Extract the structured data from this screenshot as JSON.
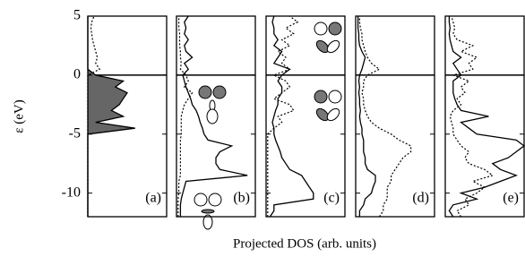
{
  "chart_data": [
    {
      "type": "line",
      "label": "(a)",
      "ylabel": "ε (eV)",
      "xlabel": "Projected DOS (arb. units)",
      "tick_labels": true,
      "ylim": [
        -12,
        5
      ],
      "yticks": [
        -10,
        -5,
        0,
        5
      ],
      "xlim": [
        0,
        1
      ],
      "y": [
        -12,
        -11.5,
        -11,
        -10.5,
        -10,
        -9.5,
        -9,
        -8.5,
        -8,
        -7.5,
        -7,
        -6.5,
        -6,
        -5.5,
        -5,
        -4.5,
        -4,
        -3.5,
        -3,
        -2.5,
        -2,
        -1.5,
        -1,
        -0.5,
        0,
        0.5,
        1,
        1.5,
        2,
        2.5,
        3,
        3.5,
        4,
        4.5,
        5
      ],
      "series": [
        {
          "color": "#000000",
          "style": "solid",
          "fill": "#666666",
          "values": [
            0,
            0,
            0,
            0,
            0,
            0,
            0,
            0,
            0,
            0,
            0,
            0,
            0,
            0,
            0,
            0.6,
            0.1,
            0.45,
            0.3,
            0.4,
            0.45,
            0.5,
            0.35,
            0.45,
            0.1,
            0,
            0,
            0,
            0,
            0,
            0,
            0,
            0,
            0,
            0
          ]
        },
        {
          "color": "#000000",
          "style": "dotted",
          "values": [
            0,
            0,
            0,
            0,
            0,
            0,
            0,
            0,
            0,
            0,
            0,
            0,
            0,
            0,
            0,
            0,
            0,
            0,
            0,
            0,
            0,
            0,
            0,
            0,
            0,
            0.15,
            0.1,
            0.12,
            0.1,
            0.08,
            0.06,
            0.05,
            0.04,
            0.05,
            0.08
          ]
        }
      ]
    },
    {
      "type": "line",
      "label": "(b)",
      "ylim": [
        -12,
        5
      ],
      "yticks": [
        -10,
        -5,
        0,
        5
      ],
      "xlim": [
        0,
        1
      ],
      "y": [
        -12,
        -11.5,
        -11,
        -10.5,
        -10,
        -9.5,
        -9,
        -8.5,
        -8,
        -7.5,
        -7,
        -6.5,
        -6,
        -5.5,
        -5,
        -4.5,
        -4,
        -3.5,
        -3,
        -2.5,
        -2,
        -1.5,
        -1,
        -0.5,
        0,
        0.5,
        1,
        1.5,
        2,
        2.5,
        3,
        3.5,
        4,
        4.5,
        5
      ],
      "series": [
        {
          "color": "#000000",
          "style": "solid",
          "values": [
            0.05,
            0.05,
            0.05,
            0.06,
            0.08,
            0.1,
            0.12,
            0.9,
            0.55,
            0.5,
            0.5,
            0.55,
            0.7,
            0.4,
            0.35,
            0.33,
            0.3,
            0.28,
            0.25,
            0.2,
            0.18,
            0.15,
            0.12,
            0.1,
            0.08,
            0.15,
            0.1,
            0.2,
            0.12,
            0.1,
            0.15,
            0.1,
            0.12,
            0.1,
            0.15
          ]
        },
        {
          "color": "#000000",
          "style": "dotted",
          "values": [
            0.02,
            0.02,
            0.02,
            0.02,
            0.03,
            0.03,
            0.03,
            0.05,
            0.05,
            0.05,
            0.05,
            0.05,
            0.05,
            0.05,
            0.06,
            0.06,
            0.06,
            0.06,
            0.08,
            0.1,
            0.15,
            0.2,
            0.1,
            0.15,
            0.12,
            0.05,
            0.06,
            0.05,
            0.05,
            0.04,
            0.04,
            0.04,
            0.03,
            0.03,
            0.03
          ]
        }
      ]
    },
    {
      "type": "line",
      "label": "(c)",
      "ylim": [
        -12,
        5
      ],
      "yticks": [
        -10,
        -5,
        0,
        5
      ],
      "xlim": [
        0,
        1
      ],
      "y": [
        -12,
        -11.5,
        -11,
        -10.5,
        -10,
        -9.5,
        -9,
        -8.5,
        -8,
        -7.5,
        -7,
        -6.5,
        -6,
        -5.5,
        -5,
        -4.5,
        -4,
        -3.5,
        -3,
        -2.5,
        -2,
        -1.5,
        -1,
        -0.5,
        0,
        0.5,
        1,
        1.5,
        2,
        2.5,
        3,
        3.5,
        4,
        4.5,
        5
      ],
      "series": [
        {
          "color": "#000000",
          "style": "solid",
          "values": [
            0.05,
            0.1,
            0.1,
            0.6,
            0.6,
            0.55,
            0.5,
            0.45,
            0.3,
            0.25,
            0.2,
            0.18,
            0.15,
            0.12,
            0.1,
            0.1,
            0.08,
            0.1,
            0.12,
            0.15,
            0.15,
            0.2,
            0.2,
            0.15,
            0.2,
            0.3,
            0.1,
            0.15,
            0.2,
            0.1,
            0.15,
            0.1,
            0.1,
            0.08,
            0.1
          ]
        },
        {
          "color": "#000000",
          "style": "dotted",
          "values": [
            0.02,
            0.02,
            0.02,
            0.02,
            0.02,
            0.02,
            0.02,
            0.02,
            0.02,
            0.02,
            0.02,
            0.02,
            0.02,
            0.02,
            0.02,
            0.1,
            0.2,
            0.15,
            0.35,
            0.3,
            0.1,
            0.2,
            0.3,
            0.25,
            0.1,
            0.3,
            0.2,
            0.25,
            0.15,
            0.3,
            0.2,
            0.35,
            0.25,
            0.4,
            0.3
          ]
        }
      ]
    },
    {
      "type": "line",
      "label": "(d)",
      "ylim": [
        -12,
        5
      ],
      "yticks": [
        -10,
        -5,
        0,
        5
      ],
      "xlim": [
        0,
        1
      ],
      "y": [
        -12,
        -11.5,
        -11,
        -10.5,
        -10,
        -9.5,
        -9,
        -8.5,
        -8,
        -7.5,
        -7,
        -6.5,
        -6,
        -5.5,
        -5,
        -4.5,
        -4,
        -3.5,
        -3,
        -2.5,
        -2,
        -1.5,
        -1,
        -0.5,
        0,
        0.5,
        1,
        1.5,
        2,
        2.5,
        3,
        3.5,
        4,
        4.5,
        5
      ],
      "series": [
        {
          "color": "#000000",
          "style": "solid",
          "values": [
            0.05,
            0.05,
            0.1,
            0.12,
            0.2,
            0.22,
            0.25,
            0.25,
            0.15,
            0.12,
            0.12,
            0.1,
            0.1,
            0.1,
            0.08,
            0.08,
            0.06,
            0.05,
            0.06,
            0.05,
            0.05,
            0.04,
            0.05,
            0.04,
            0.05,
            0.08,
            0.1,
            0.12,
            0.08,
            0.05,
            0.04,
            0.04,
            0.03,
            0.03,
            0.03
          ]
        },
        {
          "color": "#000000",
          "style": "dotted",
          "values": [
            0.3,
            0.35,
            0.35,
            0.4,
            0.4,
            0.4,
            0.45,
            0.45,
            0.5,
            0.55,
            0.6,
            0.7,
            0.7,
            0.55,
            0.45,
            0.3,
            0.2,
            0.15,
            0.12,
            0.1,
            0.1,
            0.08,
            0.1,
            0.1,
            0.15,
            0.3,
            0.2,
            0.15,
            0.12,
            0.1,
            0.08,
            0.08,
            0.06,
            0.05,
            0.05
          ]
        }
      ]
    },
    {
      "type": "line",
      "label": "(e)",
      "ylim": [
        -12,
        5
      ],
      "yticks": [
        -10,
        -5,
        0,
        5
      ],
      "xlim": [
        0,
        1
      ],
      "y": [
        -12,
        -11.5,
        -11,
        -10.5,
        -10,
        -9.5,
        -9,
        -8.5,
        -8,
        -7.5,
        -7,
        -6.5,
        -6,
        -5.5,
        -5,
        -4.5,
        -4,
        -3.5,
        -3,
        -2.5,
        -2,
        -1.5,
        -1,
        -0.5,
        0,
        0.5,
        1,
        1.5,
        2,
        2.5,
        3,
        3.5,
        4,
        4.5,
        5
      ],
      "series": [
        {
          "color": "#000000",
          "style": "solid",
          "values": [
            0.1,
            0.05,
            0.1,
            0.4,
            0.2,
            0.5,
            0.7,
            0.9,
            0.7,
            0.6,
            0.8,
            0.9,
            1.0,
            0.9,
            0.4,
            0.3,
            0.2,
            0.55,
            0.2,
            0.15,
            0.12,
            0.1,
            0.1,
            0.1,
            0.2,
            0.15,
            0.1,
            0.2,
            0.1,
            0.08,
            0.06,
            0.05,
            0.06,
            0.05,
            0.05
          ]
        },
        {
          "color": "#000000",
          "style": "dotted",
          "values": [
            0.2,
            0.15,
            0.3,
            0.25,
            0.4,
            0.5,
            0.35,
            0.6,
            0.5,
            0.3,
            0.25,
            0.3,
            0.2,
            0.15,
            0.1,
            0.1,
            0.08,
            0.06,
            0.1,
            0.2,
            0.15,
            0.25,
            0.2,
            0.3,
            0.1,
            0.35,
            0.3,
            0.4,
            0.2,
            0.35,
            0.15,
            0.1,
            0.12,
            0.1,
            0.08
          ]
        }
      ]
    }
  ]
}
